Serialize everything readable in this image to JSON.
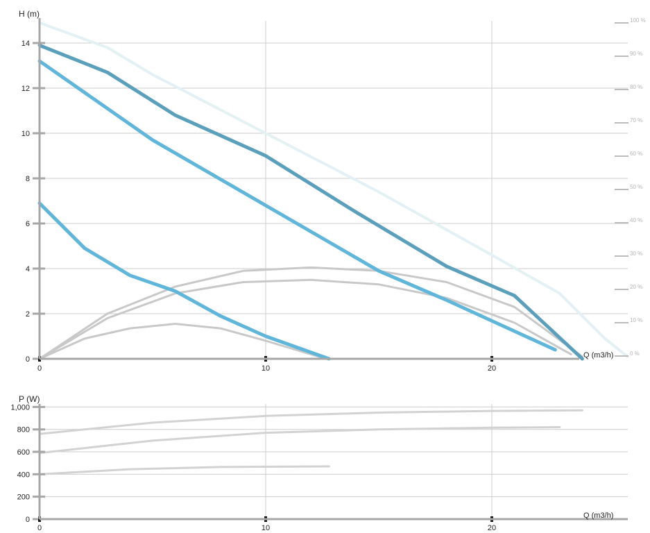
{
  "chart_data": [
    {
      "type": "line",
      "panel": "head",
      "ylabel": "H (m)",
      "xlabel": "Q (m3/h)",
      "xlim": [
        0,
        26
      ],
      "ylim": [
        0,
        14
      ],
      "x_ticks": [
        "0",
        "10",
        "20"
      ],
      "y_ticks": [
        "0",
        "2",
        "4",
        "6",
        "8",
        "10",
        "12",
        "14"
      ],
      "y2_ticks": [
        "0 %",
        "10 %",
        "20 %",
        "30 %",
        "40 %",
        "50 %",
        "60 %",
        "70 %",
        "80 %",
        "90 %",
        "100 %"
      ],
      "grid": true,
      "colors": {
        "head_dark": "#5a9fbb",
        "head_light": "#5fb6da",
        "efficiency": "#c8c8c8",
        "envelope": "#e4f1f4",
        "axis": "#a6a6a6",
        "grid": "#cccccc",
        "text": "#222222",
        "right_axis_text": "#b4b4b4"
      },
      "series": [
        {
          "role": "head",
          "color_key": "head_dark",
          "x": [
            0,
            3,
            6,
            10,
            14,
            18,
            21,
            24
          ],
          "y": [
            13.9,
            12.7,
            10.8,
            9.0,
            6.5,
            4.1,
            2.8,
            0
          ]
        },
        {
          "role": "head",
          "color_key": "head_light",
          "x": [
            0,
            5,
            10,
            15,
            18,
            22.8
          ],
          "y": [
            13.2,
            9.7,
            6.8,
            3.9,
            2.6,
            0.4
          ]
        },
        {
          "role": "head",
          "color_key": "head_light",
          "x": [
            0,
            2,
            4,
            6,
            8,
            10,
            12.8
          ],
          "y": [
            6.9,
            4.9,
            3.7,
            3.0,
            1.9,
            1.0,
            0
          ]
        },
        {
          "role": "efficiency",
          "color_key": "efficiency",
          "x": [
            0,
            3,
            6,
            9,
            12,
            15,
            18,
            21,
            24
          ],
          "y": [
            0,
            2.0,
            3.2,
            3.9,
            4.05,
            3.9,
            3.4,
            2.3,
            0.1
          ]
        },
        {
          "role": "efficiency",
          "color_key": "efficiency",
          "x": [
            0,
            3,
            6,
            9,
            12,
            15,
            18,
            21,
            23.5
          ],
          "y": [
            0,
            1.8,
            2.9,
            3.4,
            3.5,
            3.3,
            2.7,
            1.6,
            0.2
          ]
        },
        {
          "role": "efficiency",
          "color_key": "efficiency",
          "x": [
            0,
            2,
            4,
            6,
            8,
            10,
            12.5
          ],
          "y": [
            0,
            0.9,
            1.35,
            1.55,
            1.35,
            0.8,
            0.05
          ]
        },
        {
          "role": "envelope",
          "color_key": "envelope",
          "x": [
            0,
            3,
            5,
            10,
            15,
            20,
            23,
            25,
            26
          ],
          "y": [
            14.9,
            13.8,
            12.6,
            10.0,
            7.4,
            4.6,
            2.9,
            0.9,
            0.1
          ]
        }
      ]
    },
    {
      "type": "line",
      "panel": "power",
      "ylabel": "P (W)",
      "xlabel": "Q (m3/h)",
      "xlim": [
        0,
        26
      ],
      "ylim": [
        0,
        1000
      ],
      "x_ticks": [
        "0",
        "10",
        "20"
      ],
      "y_ticks": [
        "0",
        "200",
        "400",
        "600",
        "800",
        "1,000"
      ],
      "grid": true,
      "colors": {
        "power": "#d2d2d2",
        "axis": "#a6a6a6",
        "grid": "#cccccc",
        "text": "#222222"
      },
      "series": [
        {
          "role": "power",
          "color_key": "power",
          "x": [
            0,
            5,
            10,
            15,
            20,
            24
          ],
          "y": [
            760,
            860,
            920,
            950,
            965,
            970
          ]
        },
        {
          "role": "power",
          "color_key": "power",
          "x": [
            0,
            5,
            10,
            15,
            20,
            23
          ],
          "y": [
            590,
            700,
            770,
            800,
            815,
            820
          ]
        },
        {
          "role": "power",
          "color_key": "power",
          "x": [
            0,
            4,
            8,
            12.8
          ],
          "y": [
            400,
            445,
            465,
            470
          ]
        }
      ]
    }
  ]
}
